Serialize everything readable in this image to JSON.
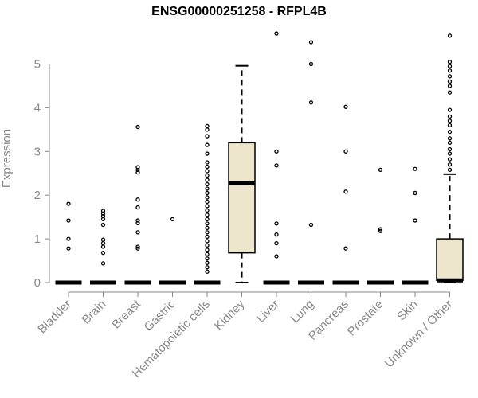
{
  "chart_data": {
    "type": "boxplot",
    "title": "ENSG00000251258 - RFPL4B",
    "ylabel": "Expression",
    "xlabel": "",
    "ylim": [
      0,
      5.7
    ],
    "yticks": [
      0,
      1,
      2,
      3,
      4,
      5
    ],
    "categories": [
      "Bladder",
      "Brain",
      "Breast",
      "Gastric",
      "Hematopoietic cells",
      "Kidney",
      "Liver",
      "Lung",
      "Pancreas",
      "Prostate",
      "Skin",
      "Unknown / Other"
    ],
    "box_color": "#ede6cc",
    "boxes": [
      {
        "q1": 0,
        "median": 0,
        "q3": 0,
        "whisker_low": 0,
        "whisker_high": 0,
        "outliers": [
          0.78,
          1.0,
          1.42,
          1.8
        ]
      },
      {
        "q1": 0,
        "median": 0,
        "q3": 0,
        "whisker_low": 0,
        "whisker_high": 0,
        "outliers": [
          0.44,
          0.68,
          0.82,
          0.9,
          0.98,
          1.32,
          1.45,
          1.52,
          1.58,
          1.64
        ]
      },
      {
        "q1": 0,
        "median": 0,
        "q3": 0,
        "whisker_low": 0,
        "whisker_high": 0,
        "outliers": [
          0.78,
          0.82,
          1.15,
          1.36,
          1.42,
          1.72,
          1.9,
          2.52,
          2.58,
          2.64,
          3.56
        ]
      },
      {
        "q1": 0,
        "median": 0,
        "q3": 0,
        "whisker_low": 0,
        "whisker_high": 0,
        "outliers": [
          1.45
        ]
      },
      {
        "q1": 0,
        "median": 0,
        "q3": 0,
        "whisker_low": 0,
        "whisker_high": 0,
        "outliers": [
          0.25,
          0.35,
          0.45,
          0.55,
          0.65,
          0.75,
          0.85,
          0.95,
          1.05,
          1.15,
          1.25,
          1.35,
          1.45,
          1.55,
          1.65,
          1.75,
          1.85,
          1.95,
          2.05,
          2.15,
          2.25,
          2.35,
          2.45,
          2.55,
          2.65,
          2.75,
          2.95,
          3.15,
          3.35,
          3.5,
          3.58
        ]
      },
      {
        "q1": 0.68,
        "median": 2.27,
        "q3": 3.2,
        "whisker_low": 0,
        "whisker_high": 4.96,
        "outliers": []
      },
      {
        "q1": 0,
        "median": 0,
        "q3": 0,
        "whisker_low": 0,
        "whisker_high": 0,
        "outliers": [
          0.6,
          0.9,
          1.1,
          1.35,
          2.68,
          3.0,
          5.7
        ]
      },
      {
        "q1": 0,
        "median": 0,
        "q3": 0,
        "whisker_low": 0,
        "whisker_high": 0,
        "outliers": [
          1.32,
          4.12,
          5.0,
          5.5
        ]
      },
      {
        "q1": 0,
        "median": 0,
        "q3": 0,
        "whisker_low": 0,
        "whisker_high": 0,
        "outliers": [
          0.78,
          2.08,
          3.0,
          4.02
        ]
      },
      {
        "q1": 0,
        "median": 0,
        "q3": 0,
        "whisker_low": 0,
        "whisker_high": 0,
        "outliers": [
          1.18,
          1.22,
          2.58
        ]
      },
      {
        "q1": 0,
        "median": 0,
        "q3": 0,
        "whisker_low": 0,
        "whisker_high": 0,
        "outliers": [
          1.42,
          2.05,
          2.6
        ]
      },
      {
        "q1": 0.05,
        "median": 0.05,
        "q3": 1.0,
        "whisker_low": 0,
        "whisker_high": 2.48,
        "outliers": [
          2.58,
          2.7,
          2.82,
          2.95,
          3.05,
          3.2,
          3.3,
          3.45,
          3.6,
          3.7,
          3.8,
          3.95,
          4.35,
          4.5,
          4.6,
          4.72,
          4.85,
          4.95,
          5.05,
          5.65
        ]
      }
    ]
  }
}
